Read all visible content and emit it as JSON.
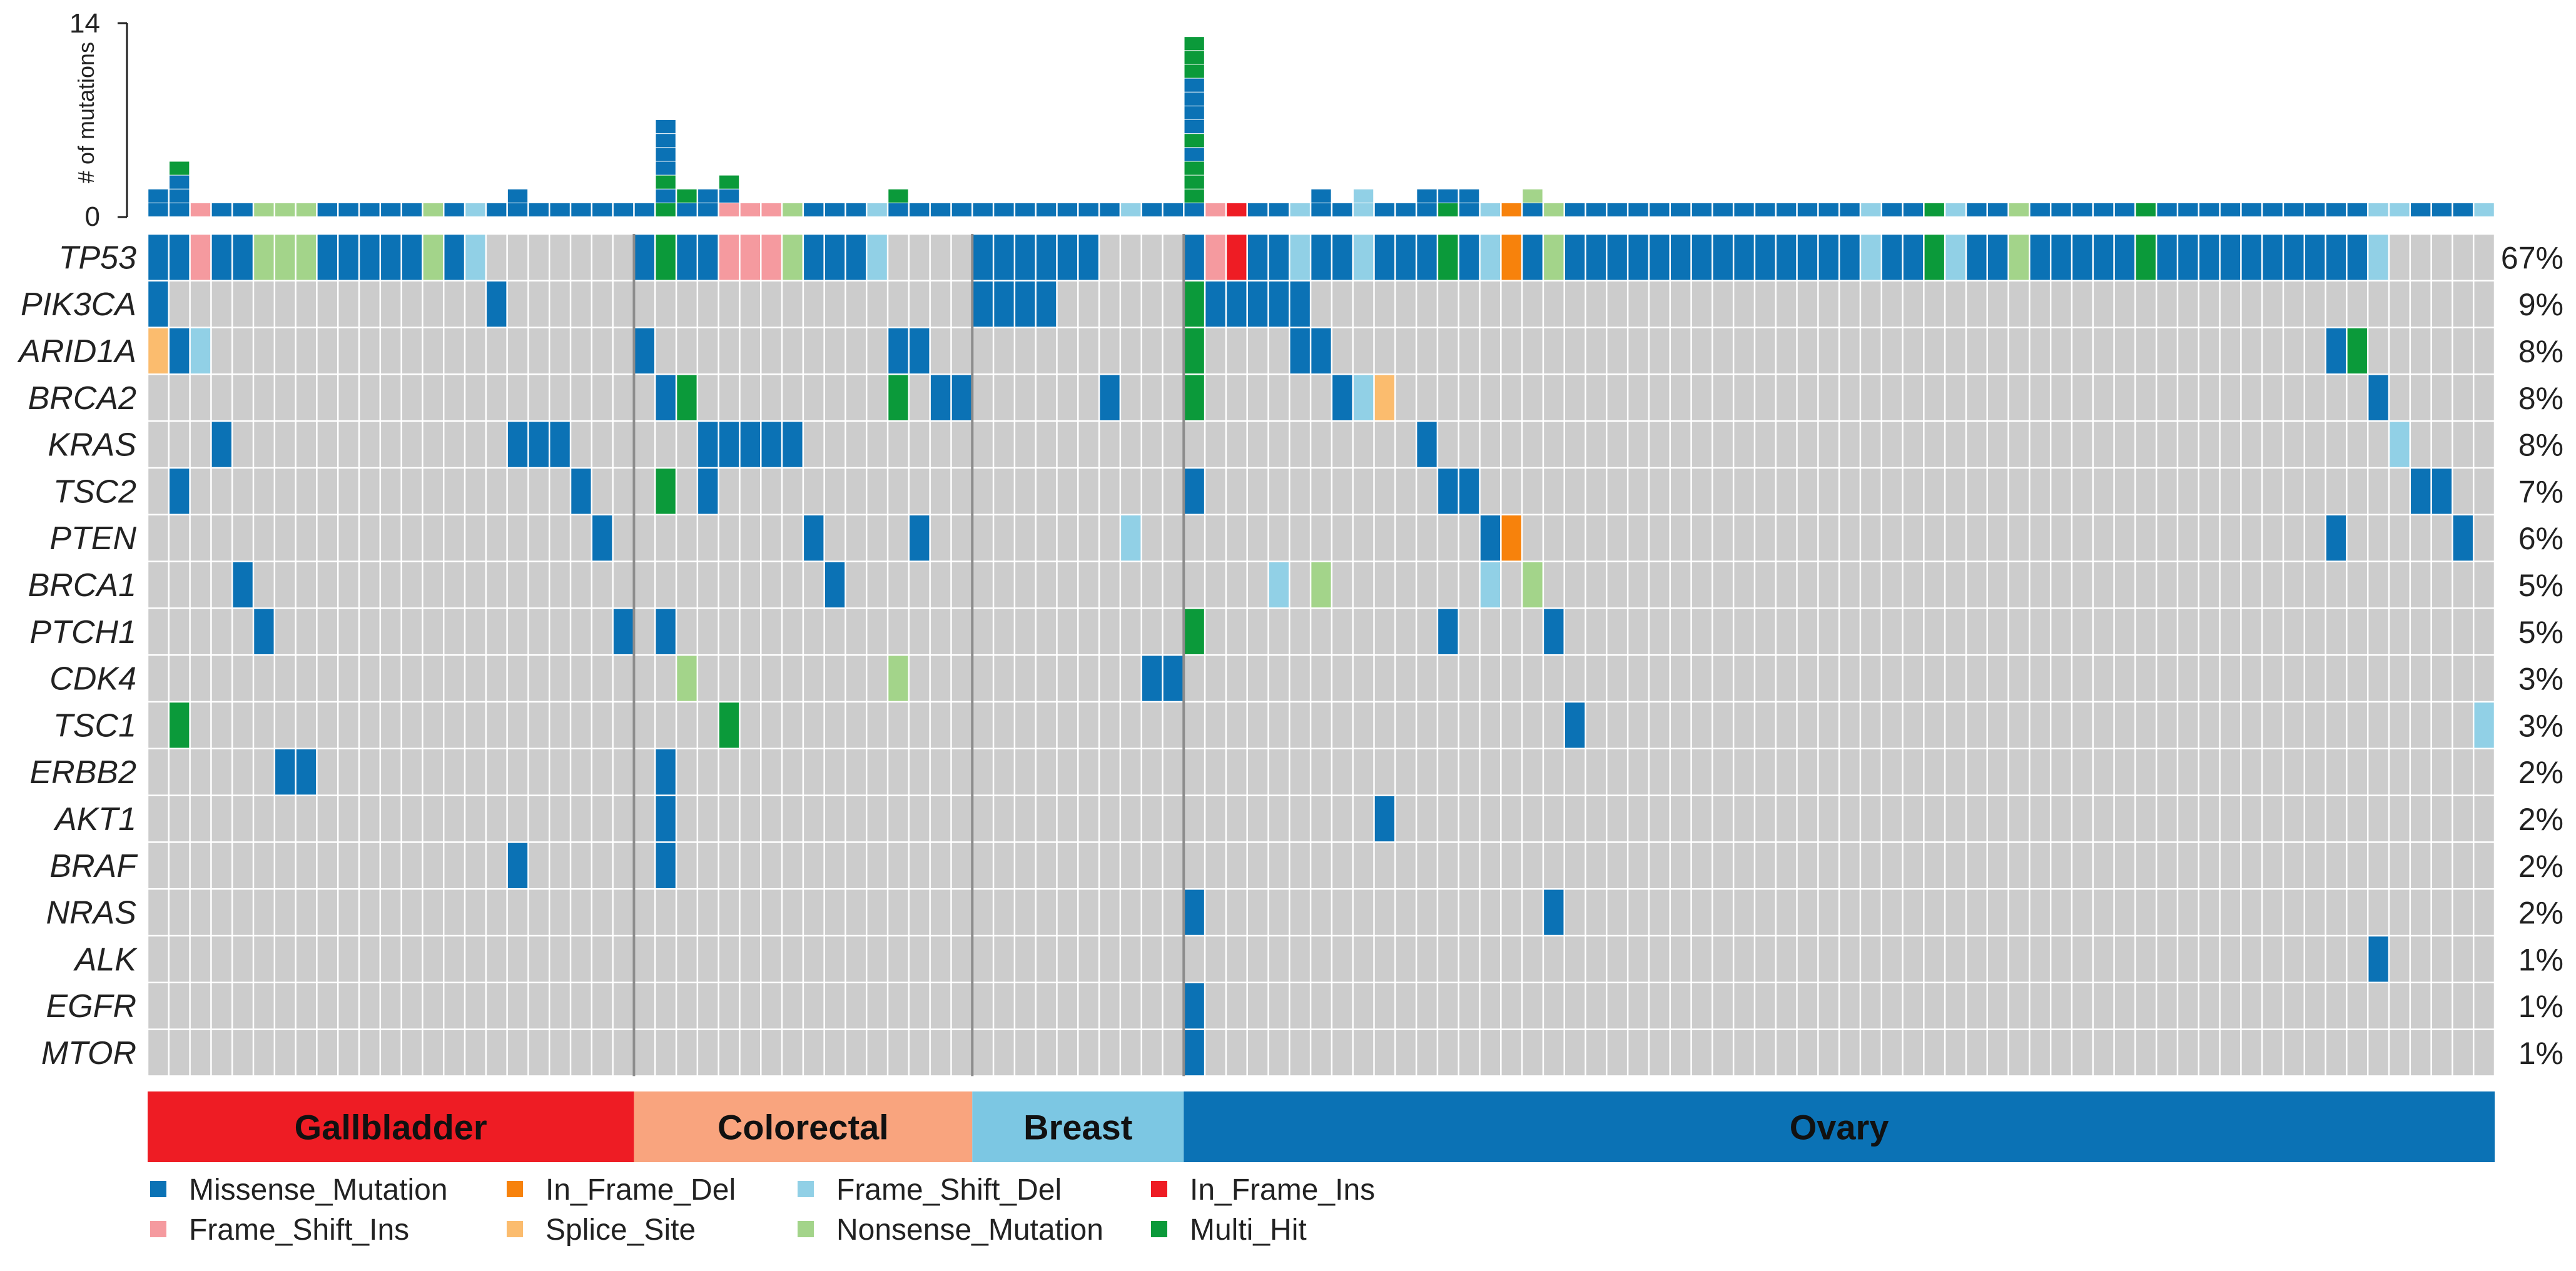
{
  "chart_data": {
    "type": "oncoplot",
    "title": "",
    "ylabel": "# of mutations",
    "ylim": [
      0,
      14
    ],
    "yticks": [
      "0",
      "14"
    ],
    "genes": [
      {
        "name": "TP53",
        "pct": "67%"
      },
      {
        "name": "PIK3CA",
        "pct": "9%"
      },
      {
        "name": "ARID1A",
        "pct": "8%"
      },
      {
        "name": "BRCA2",
        "pct": "8%"
      },
      {
        "name": "KRAS",
        "pct": "8%"
      },
      {
        "name": "TSC2",
        "pct": "7%"
      },
      {
        "name": "PTEN",
        "pct": "6%"
      },
      {
        "name": "BRCA1",
        "pct": "5%"
      },
      {
        "name": "PTCH1",
        "pct": "5%"
      },
      {
        "name": "CDK4",
        "pct": "3%"
      },
      {
        "name": "TSC1",
        "pct": "3%"
      },
      {
        "name": "ERBB2",
        "pct": "2%"
      },
      {
        "name": "AKT1",
        "pct": "2%"
      },
      {
        "name": "BRAF",
        "pct": "2%"
      },
      {
        "name": "NRAS",
        "pct": "2%"
      },
      {
        "name": "ALK",
        "pct": "1%"
      },
      {
        "name": "EGFR",
        "pct": "1%"
      },
      {
        "name": "MTOR",
        "pct": "1%"
      }
    ],
    "cohorts": [
      {
        "name": "Gallbladder",
        "samples": 23,
        "color": "#ee1c24"
      },
      {
        "name": "Colorectal",
        "samples": 16,
        "color": "#f9a47e"
      },
      {
        "name": "Breast",
        "samples": 10,
        "color": "#7cc7e3"
      },
      {
        "name": "Ovary",
        "samples": 62,
        "color": "#0b72b5"
      }
    ],
    "mutation_types": [
      {
        "name": "Missense_Mutation",
        "color": "#0b72b5"
      },
      {
        "name": "Frame_Shift_Ins",
        "color": "#f59a9f"
      },
      {
        "name": "In_Frame_Del",
        "color": "#f7820c"
      },
      {
        "name": "Splice_Site",
        "color": "#fbbc6e"
      },
      {
        "name": "Frame_Shift_Del",
        "color": "#91d0e6"
      },
      {
        "name": "Nonsense_Mutation",
        "color": "#a3d48a"
      },
      {
        "name": "In_Frame_Ins",
        "color": "#ee1c24"
      },
      {
        "name": "Multi_Hit",
        "color": "#0b9a3a"
      }
    ],
    "cells": {
      "TP53": {
        "0": "M",
        "1": "M",
        "2": "FI",
        "3": "M",
        "4": "M",
        "5": "N",
        "6": "N",
        "7": "N",
        "8": "M",
        "9": "M",
        "10": "M",
        "11": "M",
        "12": "M",
        "13": "N",
        "14": "M",
        "15": "FD",
        "23": "M",
        "24": "MH",
        "25": "M",
        "26": "M",
        "27": "FI",
        "28": "FI",
        "29": "FI",
        "30": "N",
        "31": "M",
        "32": "M",
        "33": "M",
        "34": "FD",
        "39": "M",
        "40": "M",
        "41": "M",
        "42": "M",
        "43": "M",
        "44": "M",
        "49": "M",
        "50": "FI",
        "51": "II",
        "52": "M",
        "53": "M",
        "54": "FD",
        "55": "M",
        "56": "M",
        "57": "FD",
        "58": "M",
        "59": "M",
        "60": "M",
        "61": "MH",
        "62": "M",
        "63": "FD",
        "64": "ID",
        "65": "M",
        "66": "N",
        "67": "M",
        "68": "M",
        "69": "M",
        "70": "M",
        "71": "M",
        "72": "M",
        "73": "M",
        "74": "M",
        "75": "M",
        "76": "M",
        "77": "M",
        "78": "M",
        "79": "M",
        "80": "M",
        "81": "FD",
        "82": "M",
        "83": "M",
        "84": "MH",
        "85": "FD",
        "86": "M",
        "87": "M",
        "88": "N",
        "89": "M",
        "90": "M",
        "91": "M",
        "92": "M",
        "93": "M",
        "94": "MH",
        "95": "M",
        "96": "M",
        "97": "M",
        "98": "M",
        "99": "M",
        "100": "M",
        "101": "M",
        "102": "M",
        "103": "M",
        "104": "M",
        "105": "FD"
      },
      "PIK3CA": {
        "0": "M",
        "16": "M",
        "39": "M",
        "40": "M",
        "41": "M",
        "42": "M",
        "49": "MH",
        "50": "M",
        "51": "M",
        "52": "M",
        "53": "M",
        "54": "M"
      },
      "ARID1A": {
        "0": "S",
        "1": "M",
        "2": "FD",
        "23": "M",
        "35": "M",
        "36": "M",
        "49": "MH",
        "54": "M",
        "55": "M",
        "103": "M",
        "104": "MH"
      },
      "BRCA2": {
        "24": "M",
        "25": "MH",
        "35": "MH",
        "37": "M",
        "38": "M",
        "45": "M",
        "49": "MH",
        "56": "M",
        "57": "FD",
        "58": "S",
        "105": "M"
      },
      "KRAS": {
        "3": "M",
        "17": "M",
        "18": "M",
        "19": "M",
        "26": "M",
        "27": "M",
        "28": "M",
        "29": "M",
        "30": "M",
        "60": "M",
        "106": "FD"
      },
      "TSC2": {
        "1": "M",
        "20": "M",
        "24": "MH",
        "26": "M",
        "49": "M",
        "61": "M",
        "62": "M",
        "107": "M",
        "108": "M"
      },
      "PTEN": {
        "21": "M",
        "31": "M",
        "36": "M",
        "46": "FD",
        "63": "M",
        "64": "ID",
        "103": "M",
        "109": "M"
      },
      "BRCA1": {
        "4": "M",
        "32": "M",
        "53": "FD",
        "55": "N",
        "63": "FD",
        "65": "N"
      },
      "PTCH1": {
        "5": "M",
        "22": "M",
        "24": "M",
        "49": "MH",
        "61": "M",
        "66": "M"
      },
      "CDK4": {
        "25": "N",
        "35": "N",
        "47": "M",
        "48": "M"
      },
      "TSC1": {
        "1": "MH",
        "27": "MH",
        "67": "M",
        "110": "FD"
      },
      "ERBB2": {
        "6": "M",
        "7": "M",
        "24": "M"
      },
      "AKT1": {
        "24": "M",
        "58": "M"
      },
      "BRAF": {
        "17": "M",
        "24": "M"
      },
      "NRAS": {
        "49": "M",
        "66": "M"
      },
      "ALK": {
        "105": "M"
      },
      "EGFR": {
        "49": "M"
      },
      "MTOR": {
        "49": "M"
      }
    },
    "tmb_counts": [
      2,
      4,
      1,
      1,
      1,
      1,
      1,
      1,
      1,
      1,
      1,
      1,
      1,
      1,
      1,
      1,
      1,
      2,
      1,
      1,
      1,
      1,
      1,
      1,
      7,
      2,
      2,
      3,
      1,
      1,
      1,
      1,
      1,
      1,
      1,
      2,
      1,
      1,
      1,
      1,
      1,
      1,
      1,
      1,
      1,
      1,
      1,
      1,
      1,
      13,
      1,
      1,
      1,
      1,
      1,
      2,
      1,
      2,
      1,
      1,
      2,
      2,
      2,
      1,
      1,
      2,
      1,
      1,
      1,
      1,
      1,
      1,
      1,
      1,
      1,
      1,
      1,
      1,
      1,
      1,
      1,
      1,
      1,
      1,
      1,
      1,
      1,
      1,
      1,
      1,
      1,
      1,
      1,
      1,
      1,
      1,
      1,
      1,
      1,
      1,
      1,
      1,
      1,
      1,
      1,
      1,
      1,
      1,
      1,
      1,
      1
    ]
  }
}
